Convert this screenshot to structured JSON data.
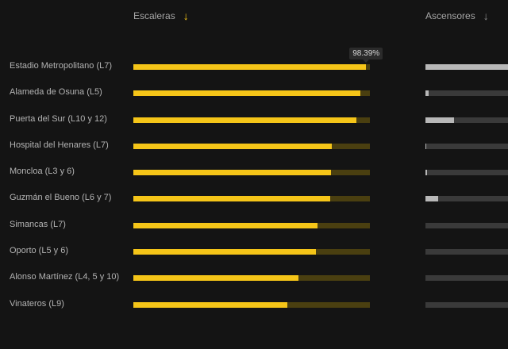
{
  "header": {
    "escaleras_label": "Escaleras",
    "ascensores_label": "Ascensores",
    "escaleras_arrow": "↓",
    "ascensores_arrow": "↓"
  },
  "tooltip": {
    "text": "98.39%",
    "row_index": 0
  },
  "colors": {
    "escaleras_fill": "#f5c518",
    "escaleras_track": "#4a3f10",
    "ascensores_fill": "#b8b8b8",
    "ascensores_track": "#3a3a3a",
    "background": "#141414"
  },
  "rows": [
    {
      "label": "Estadio Metropolitano (L7)",
      "escaleras": 0.9839,
      "ascensores": 1.0
    },
    {
      "label": "Alameda de Osuna (L5)",
      "escaleras": 0.96,
      "ascensores": 0.04
    },
    {
      "label": "Puerta del Sur (L10 y 12)",
      "escaleras": 0.943,
      "ascensores": 0.35
    },
    {
      "label": "Hospital del Henares (L7)",
      "escaleras": 0.84,
      "ascensores": 0.01
    },
    {
      "label": "Moncloa (L3 y 6)",
      "escaleras": 0.836,
      "ascensores": 0.02
    },
    {
      "label": "Guzmán el Bueno (L6 y 7)",
      "escaleras": 0.833,
      "ascensores": 0.15
    },
    {
      "label": "Simancas (L7)",
      "escaleras": 0.779,
      "ascensores": 0.0
    },
    {
      "label": "Oporto (L5 y 6)",
      "escaleras": 0.772,
      "ascensores": 0.0
    },
    {
      "label": "Alonso Martínez (L4, 5 y 10)",
      "escaleras": 0.698,
      "ascensores": 0.0
    },
    {
      "label": "Vinateros (L9)",
      "escaleras": 0.651,
      "ascensores": 0.0
    }
  ]
}
